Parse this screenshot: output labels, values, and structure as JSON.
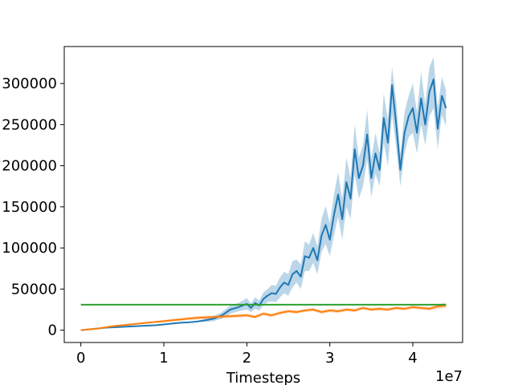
{
  "chart_data": {
    "type": "line",
    "title": "",
    "xlabel": "Timesteps",
    "ylabel": "",
    "x_offset_label": "1e7",
    "xlim": [
      -0.2,
      4.6
    ],
    "ylim": [
      -15000,
      345000
    ],
    "x_ticks": [
      0,
      1,
      2,
      3,
      4
    ],
    "x_tick_labels": [
      "0",
      "1",
      "2",
      "3",
      "4"
    ],
    "y_ticks": [
      0,
      50000,
      100000,
      150000,
      200000,
      250000,
      300000
    ],
    "y_tick_labels": [
      "0",
      "50000",
      "100000",
      "150000",
      "200000",
      "250000",
      "300000"
    ],
    "grid": false,
    "legend": "none",
    "series": [
      {
        "color": "#1f77b4",
        "band_color": "#1f77b4",
        "x": [
          0,
          0.1,
          0.2,
          0.3,
          0.4,
          0.5,
          0.6,
          0.7,
          0.8,
          0.9,
          1.0,
          1.1,
          1.2,
          1.3,
          1.4,
          1.5,
          1.6,
          1.7,
          1.8,
          1.9,
          2.0,
          2.05,
          2.1,
          2.15,
          2.2,
          2.25,
          2.3,
          2.35,
          2.4,
          2.45,
          2.5,
          2.55,
          2.6,
          2.65,
          2.7,
          2.75,
          2.8,
          2.85,
          2.9,
          2.95,
          3.0,
          3.05,
          3.1,
          3.15,
          3.2,
          3.25,
          3.3,
          3.35,
          3.4,
          3.45,
          3.5,
          3.55,
          3.6,
          3.65,
          3.7,
          3.75,
          3.8,
          3.85,
          3.9,
          3.95,
          4.0,
          4.05,
          4.1,
          4.15,
          4.2,
          4.25,
          4.3,
          4.35,
          4.4
        ],
        "y": [
          0,
          1000,
          2000,
          3000,
          3500,
          4000,
          4500,
          5000,
          5500,
          6000,
          7000,
          8000,
          9000,
          9500,
          10500,
          12000,
          14000,
          18000,
          25000,
          28000,
          32000,
          27000,
          33000,
          30000,
          38000,
          42000,
          45000,
          44000,
          52000,
          58000,
          55000,
          68000,
          72000,
          65000,
          90000,
          88000,
          100000,
          85000,
          115000,
          128000,
          110000,
          140000,
          165000,
          135000,
          180000,
          160000,
          220000,
          185000,
          200000,
          238000,
          185000,
          215000,
          195000,
          258000,
          228000,
          298000,
          250000,
          195000,
          240000,
          260000,
          270000,
          240000,
          282000,
          250000,
          290000,
          305000,
          245000,
          285000,
          270000
        ],
        "band_low": [
          0,
          500,
          1500,
          2500,
          3000,
          3500,
          4000,
          4500,
          5000,
          5500,
          6500,
          7500,
          8500,
          9000,
          10000,
          10000,
          11000,
          14000,
          20000,
          23000,
          25000,
          22000,
          26000,
          24000,
          30000,
          34000,
          35000,
          34000,
          40000,
          45000,
          42000,
          52000,
          58000,
          50000,
          72000,
          72000,
          82000,
          68000,
          95000,
          105000,
          90000,
          115000,
          138000,
          110000,
          150000,
          135000,
          190000,
          160000,
          175000,
          208000,
          162000,
          190000,
          175000,
          228000,
          200000,
          262000,
          222000,
          175000,
          215000,
          235000,
          240000,
          215000,
          250000,
          225000,
          260000,
          270000,
          220000,
          262000,
          248000
        ],
        "band_high": [
          0,
          1500,
          2500,
          3500,
          4000,
          4500,
          5000,
          5500,
          6000,
          6500,
          7500,
          8500,
          9500,
          10000,
          11000,
          14000,
          17000,
          22000,
          30000,
          33000,
          39000,
          32000,
          40000,
          36000,
          46000,
          50000,
          55000,
          54000,
          64000,
          71000,
          68000,
          84000,
          86000,
          80000,
          108000,
          104000,
          118000,
          102000,
          135000,
          151000,
          130000,
          165000,
          192000,
          160000,
          210000,
          185000,
          250000,
          210000,
          225000,
          268000,
          208000,
          240000,
          215000,
          288000,
          256000,
          320000,
          278000,
          215000,
          265000,
          285000,
          300000,
          265000,
          314000,
          275000,
          320000,
          332000,
          270000,
          308000,
          292000
        ]
      },
      {
        "color": "#ff7f0e",
        "band_color": "#ff7f0e",
        "x": [
          0,
          0.2,
          0.4,
          0.6,
          0.8,
          1.0,
          1.2,
          1.4,
          1.6,
          1.8,
          2.0,
          2.1,
          2.2,
          2.3,
          2.4,
          2.5,
          2.6,
          2.7,
          2.8,
          2.9,
          3.0,
          3.1,
          3.2,
          3.3,
          3.4,
          3.5,
          3.6,
          3.7,
          3.8,
          3.9,
          4.0,
          4.1,
          4.2,
          4.3,
          4.4
        ],
        "y": [
          0,
          2000,
          5000,
          7000,
          9000,
          11000,
          13000,
          15000,
          16000,
          17000,
          18000,
          16000,
          20000,
          18000,
          21000,
          23000,
          22000,
          24000,
          25000,
          22000,
          24000,
          23000,
          25000,
          24000,
          27000,
          25000,
          26000,
          25000,
          27000,
          26000,
          28000,
          27000,
          26000,
          29000,
          30000
        ],
        "band_low": [
          0,
          1500,
          4000,
          6000,
          8000,
          9500,
          11500,
          13000,
          14000,
          15000,
          16000,
          14000,
          18000,
          16000,
          19000,
          21000,
          20000,
          22000,
          23000,
          20000,
          22000,
          21000,
          23000,
          22000,
          25000,
          23000,
          24000,
          23000,
          25000,
          24000,
          26000,
          25000,
          24000,
          26000,
          27000
        ],
        "band_high": [
          0,
          2500,
          6000,
          8000,
          10000,
          12500,
          14500,
          17000,
          18000,
          19000,
          20000,
          18000,
          22000,
          20000,
          23000,
          25000,
          24000,
          26000,
          27000,
          24000,
          26000,
          25000,
          27000,
          26000,
          29000,
          27000,
          28000,
          27000,
          29000,
          28000,
          30000,
          29000,
          28000,
          32000,
          33000
        ]
      },
      {
        "color": "#2ca02c",
        "band_color": "",
        "x": [
          0,
          4.4
        ],
        "y": [
          31000,
          31000
        ]
      }
    ]
  }
}
